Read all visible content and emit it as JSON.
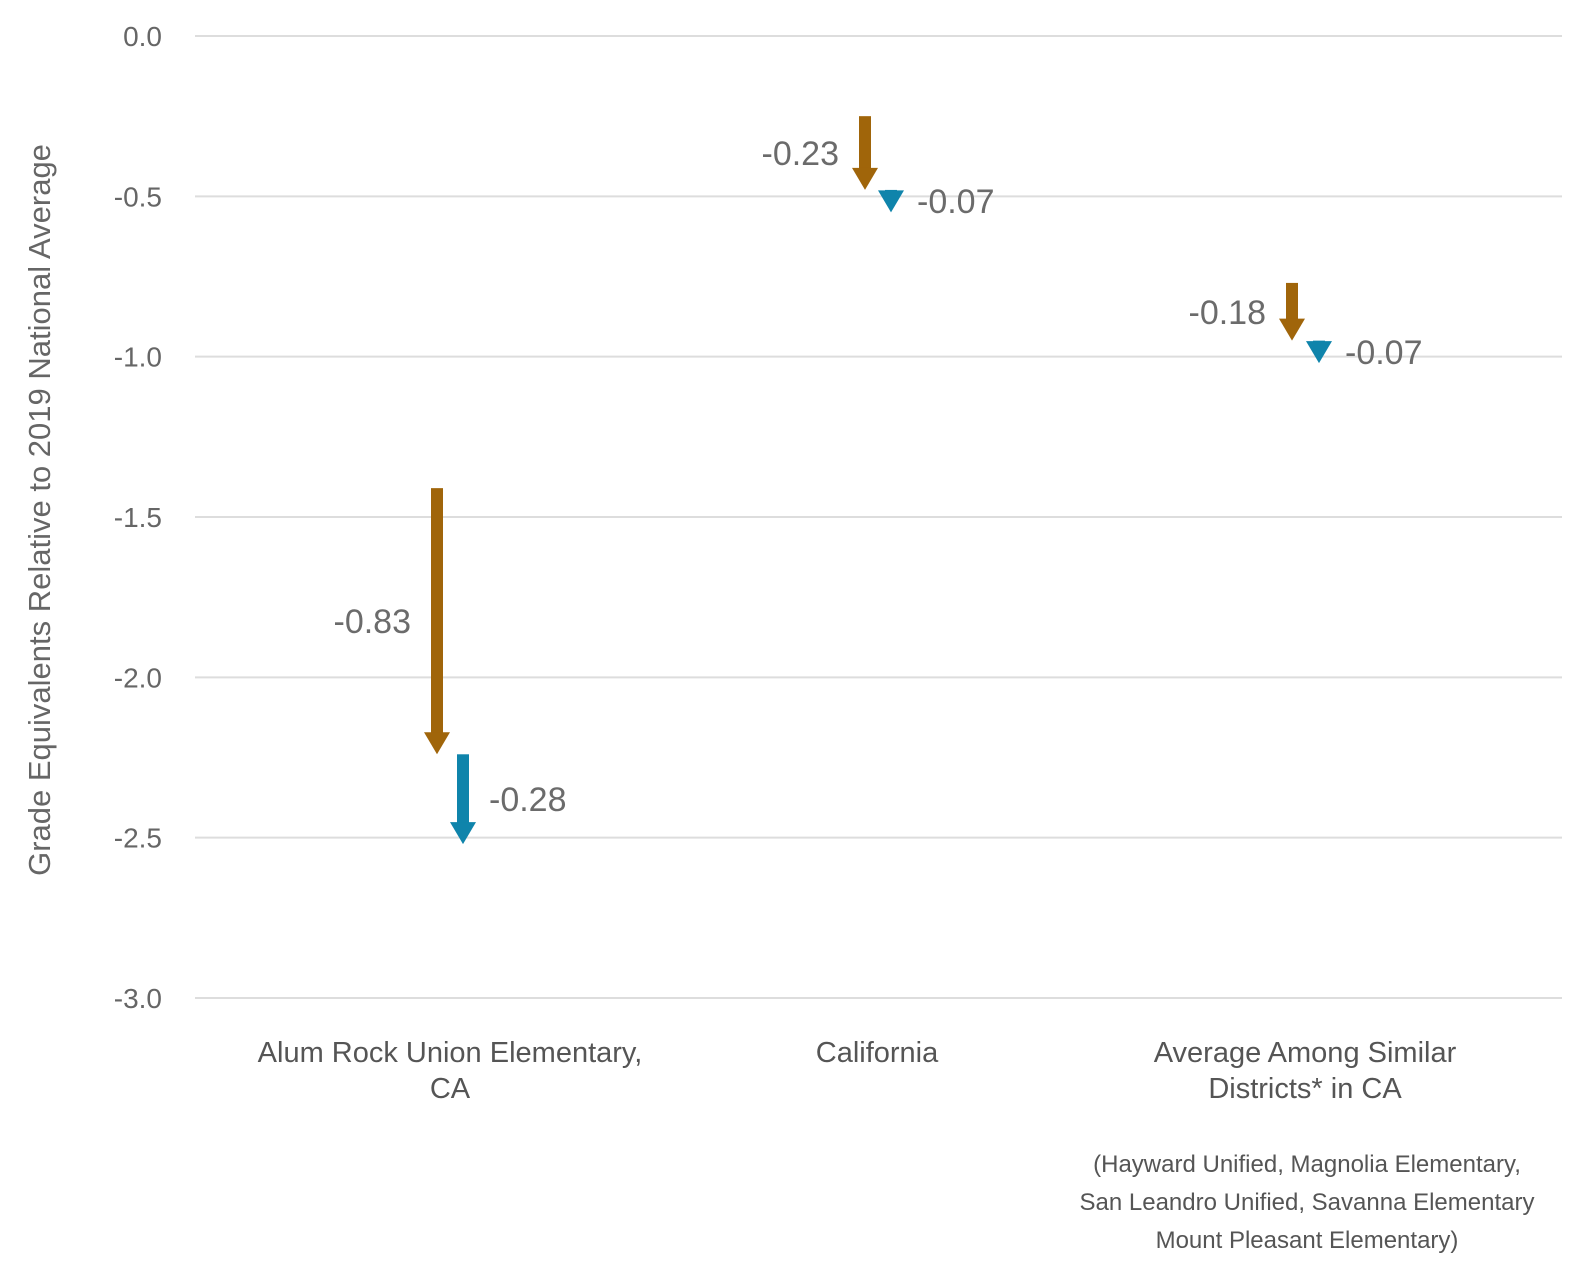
{
  "chart_data": {
    "type": "waterfall-arrows",
    "ylabel": "Grade Equivalents Relative to 2019 National Average",
    "ylim": [
      -3.0,
      0.0
    ],
    "yticks": [
      "0.0",
      "-0.5",
      "-1.0",
      "-1.5",
      "-2.0",
      "-2.5",
      "-3.0"
    ],
    "grid": true,
    "categories": [
      [
        "Alum Rock Union Elementary,",
        "CA"
      ],
      [
        "California"
      ],
      [
        "Average Among Similar",
        "Districts* in CA"
      ]
    ],
    "series": [
      {
        "color": "#a0650a",
        "arrows": [
          {
            "start": -1.41,
            "change": -0.83,
            "label": "-0.83"
          },
          {
            "start": -0.25,
            "change": -0.23,
            "label": "-0.23"
          },
          {
            "start": -0.77,
            "change": -0.18,
            "label": "-0.18"
          }
        ]
      },
      {
        "color": "#0f84ab",
        "arrows": [
          {
            "start": -2.24,
            "change": -0.28,
            "label": "-0.28"
          },
          {
            "start": -0.48,
            "change": -0.07,
            "label": "-0.07"
          },
          {
            "start": -0.95,
            "change": -0.07,
            "label": "-0.07"
          }
        ]
      }
    ],
    "footnote": [
      "(Hayward Unified, Magnolia Elementary,",
      "San Leandro Unified, Savanna Elementary",
      "Mount Pleasant Elementary)"
    ]
  }
}
